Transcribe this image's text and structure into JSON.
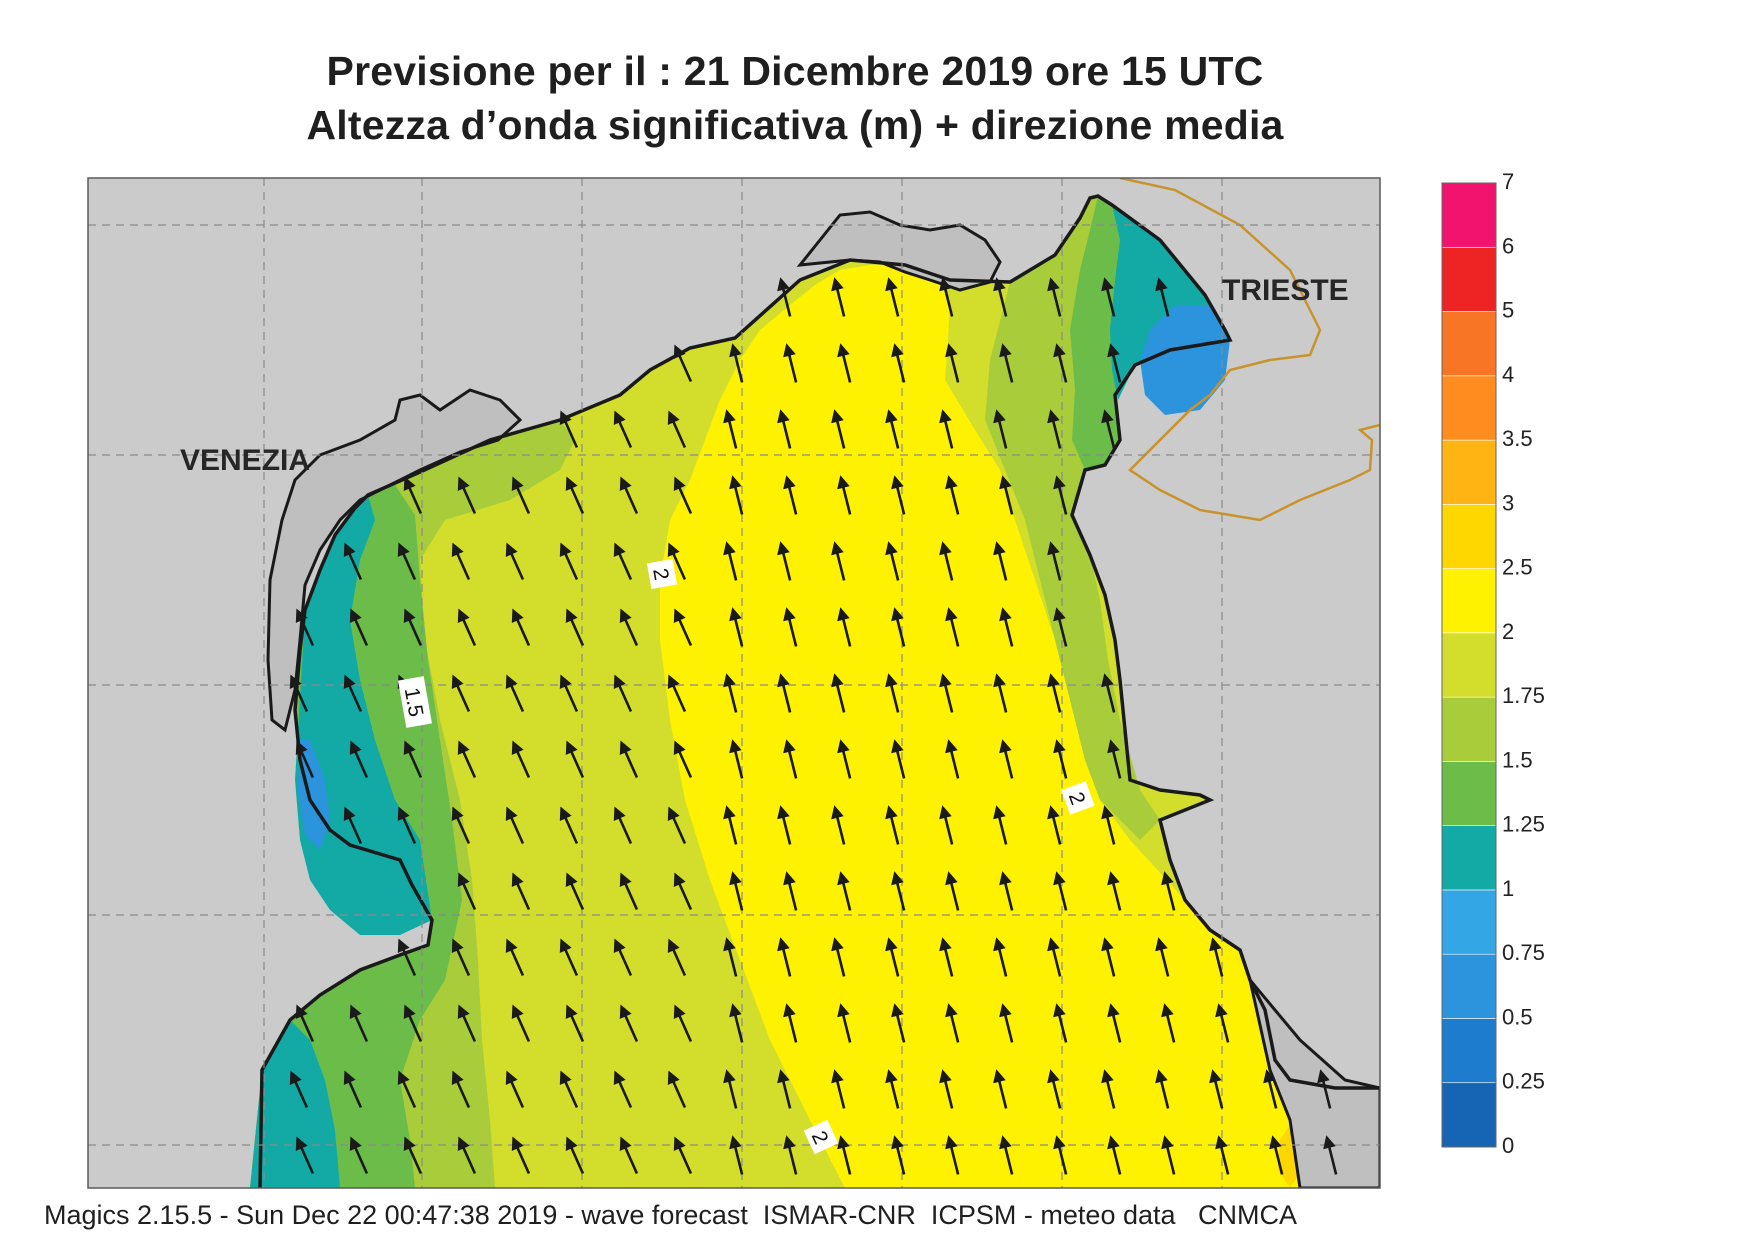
{
  "title": {
    "line1": "Previsione per il  :  21 Dicembre  2019   ore 15 UTC",
    "line2": "Altezza d’onda significativa (m) + direzione media"
  },
  "map": {
    "labels": {
      "venezia": "VENEZIA",
      "trieste": "TRIESTE"
    },
    "contour_labels": [
      "2",
      "1.5",
      "2",
      "2"
    ],
    "wave_direction": "north-northwest"
  },
  "colorbar": {
    "ticks": [
      "0",
      "0.25",
      "0.5",
      "0.75",
      "1",
      "1.25",
      "1.5",
      "1.75",
      "2",
      "2.5",
      "3",
      "3.5",
      "4",
      "5",
      "6",
      "7"
    ],
    "colors": [
      "#1565b4",
      "#1d7ccd",
      "#2b94dc",
      "#33a6e6",
      "#13aaa5",
      "#6cbc4a",
      "#a9cc3b",
      "#d3de2c",
      "#fff200",
      "#ffd700",
      "#ffb414",
      "#ff8c1e",
      "#f87526",
      "#ee2424",
      "#f2136e"
    ]
  },
  "footer": "Magics 2.15.5 - Sun Dec 22 00:47:38 2019 - wave forecast  ISMAR-CNR  ICPSM - meteo data   CNMCA"
}
